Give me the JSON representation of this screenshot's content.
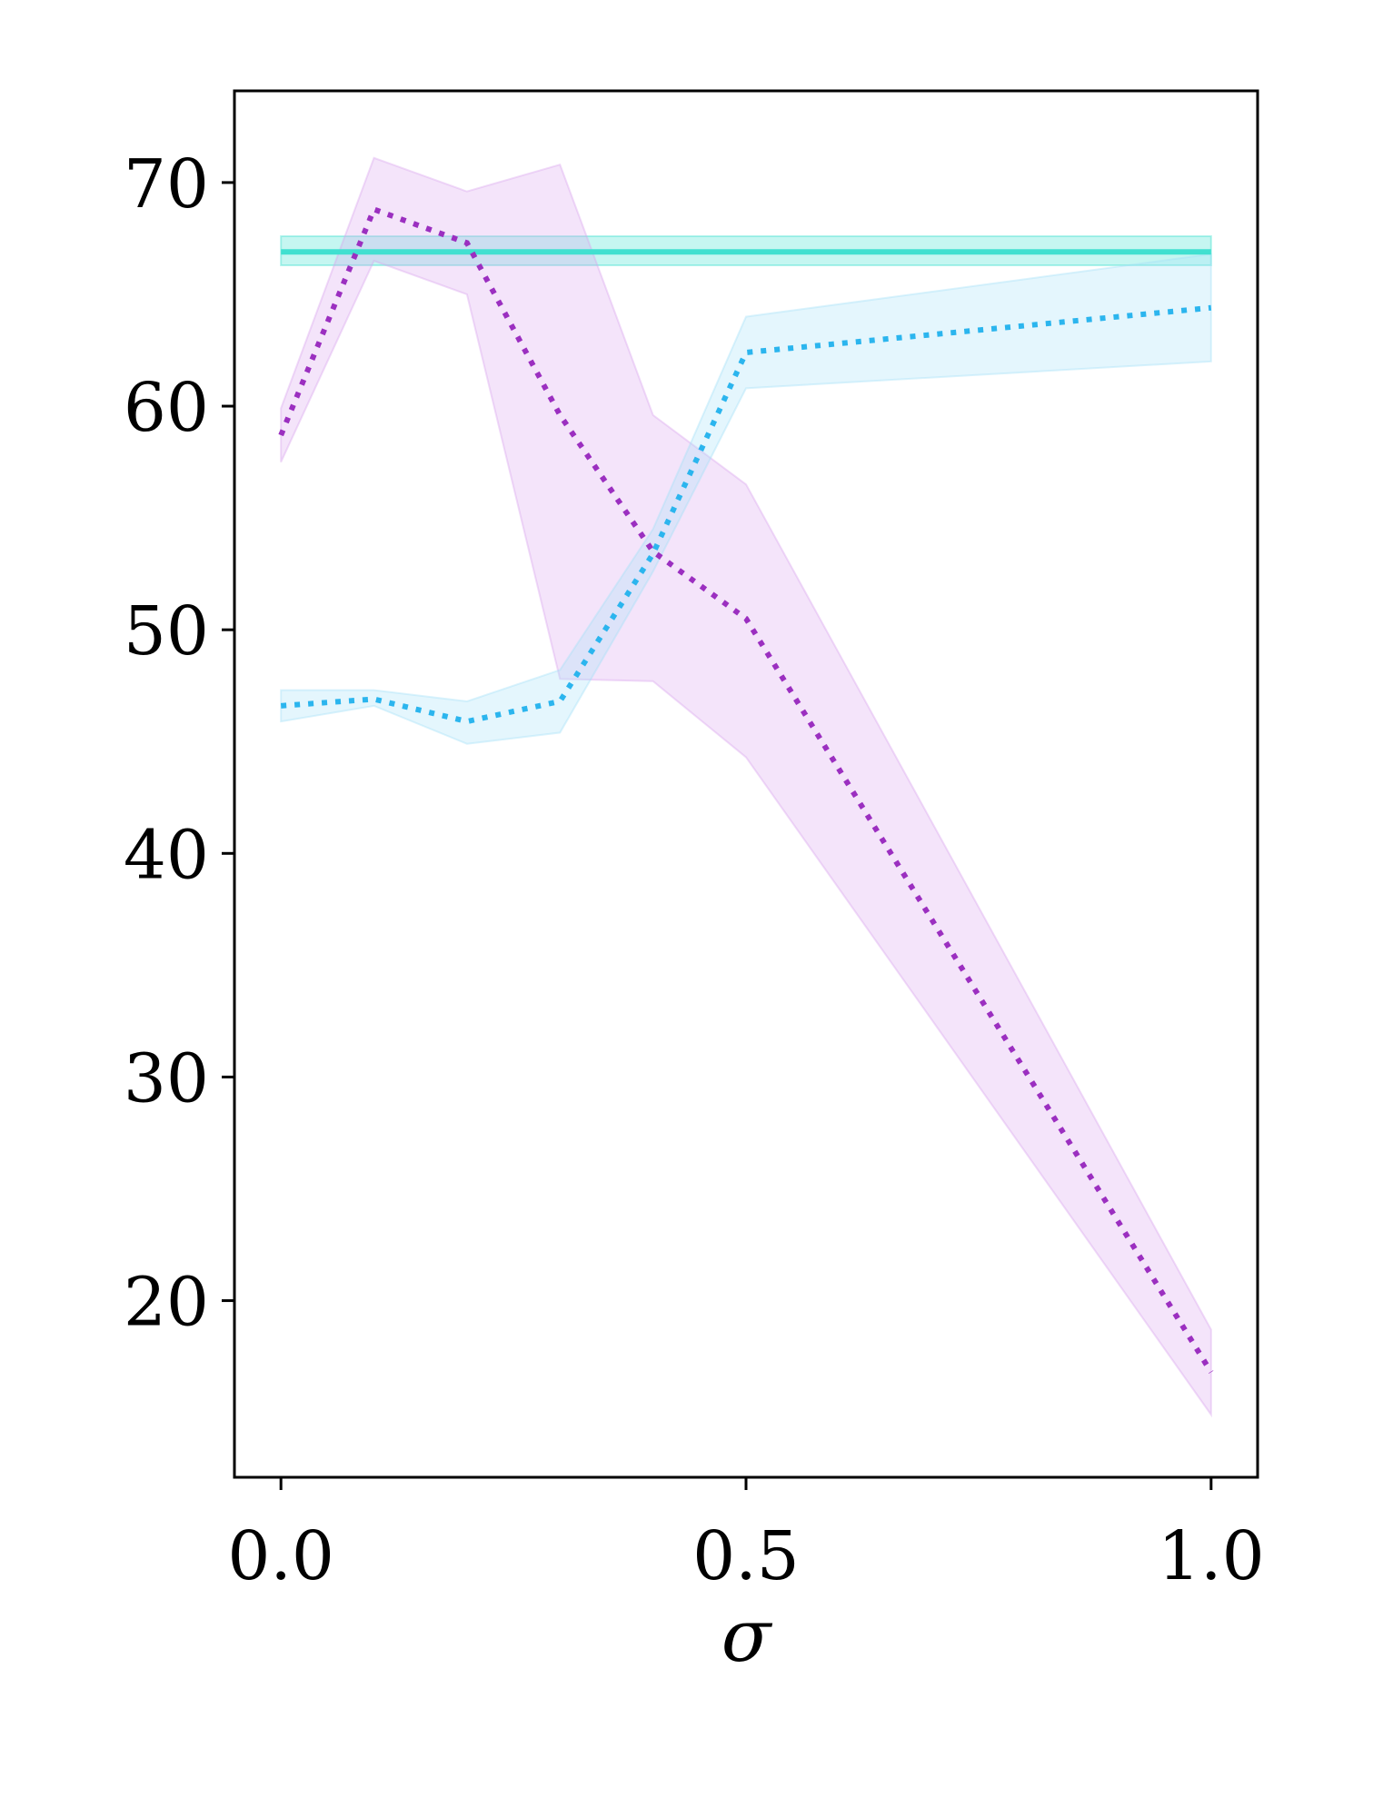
{
  "chart_data": {
    "type": "line",
    "xlabel": "σ",
    "ylabel": "",
    "xlim": [
      -0.05,
      1.05
    ],
    "ylim": [
      12.1,
      74.1
    ],
    "xticks": [
      0.0,
      0.5,
      1.0
    ],
    "xtick_labels": [
      "0.0",
      "0.5",
      "1.0"
    ],
    "yticks": [
      20,
      30,
      40,
      50,
      60,
      70
    ],
    "ytick_labels": [
      "20",
      "30",
      "40",
      "50",
      "60",
      "70"
    ],
    "grid": false,
    "legend": "none",
    "series": [
      {
        "color": "#40E0D0",
        "line_style": "solid",
        "x": [
          0.0,
          1.0
        ],
        "y": [
          66.9,
          66.9
        ],
        "lower": [
          66.3,
          66.3
        ],
        "upper": [
          67.6,
          67.6
        ]
      },
      {
        "color": "#9B2FC0",
        "band_color": "#D9A6EE",
        "line_style": "dotted",
        "x": [
          0.0,
          0.1,
          0.2,
          0.3,
          0.4,
          0.5,
          1.0
        ],
        "y": [
          58.7,
          68.8,
          67.3,
          59.6,
          53.5,
          50.5,
          16.8
        ],
        "lower": [
          57.5,
          66.5,
          65.0,
          47.8,
          47.7,
          44.3,
          14.9
        ],
        "upper": [
          59.9,
          71.1,
          69.6,
          70.8,
          59.6,
          56.5,
          18.7
        ]
      },
      {
        "color": "#2BB5EE",
        "band_color": "#A6E1F7",
        "line_style": "dotted",
        "x": [
          0.0,
          0.1,
          0.2,
          0.3,
          0.4,
          0.5,
          1.0
        ],
        "y": [
          46.6,
          46.9,
          45.9,
          46.8,
          53.4,
          62.4,
          64.4
        ],
        "lower": [
          45.9,
          46.6,
          44.9,
          45.4,
          52.6,
          60.8,
          62.0
        ],
        "upper": [
          47.3,
          47.3,
          46.8,
          48.2,
          54.5,
          64.0,
          66.8
        ]
      }
    ]
  }
}
